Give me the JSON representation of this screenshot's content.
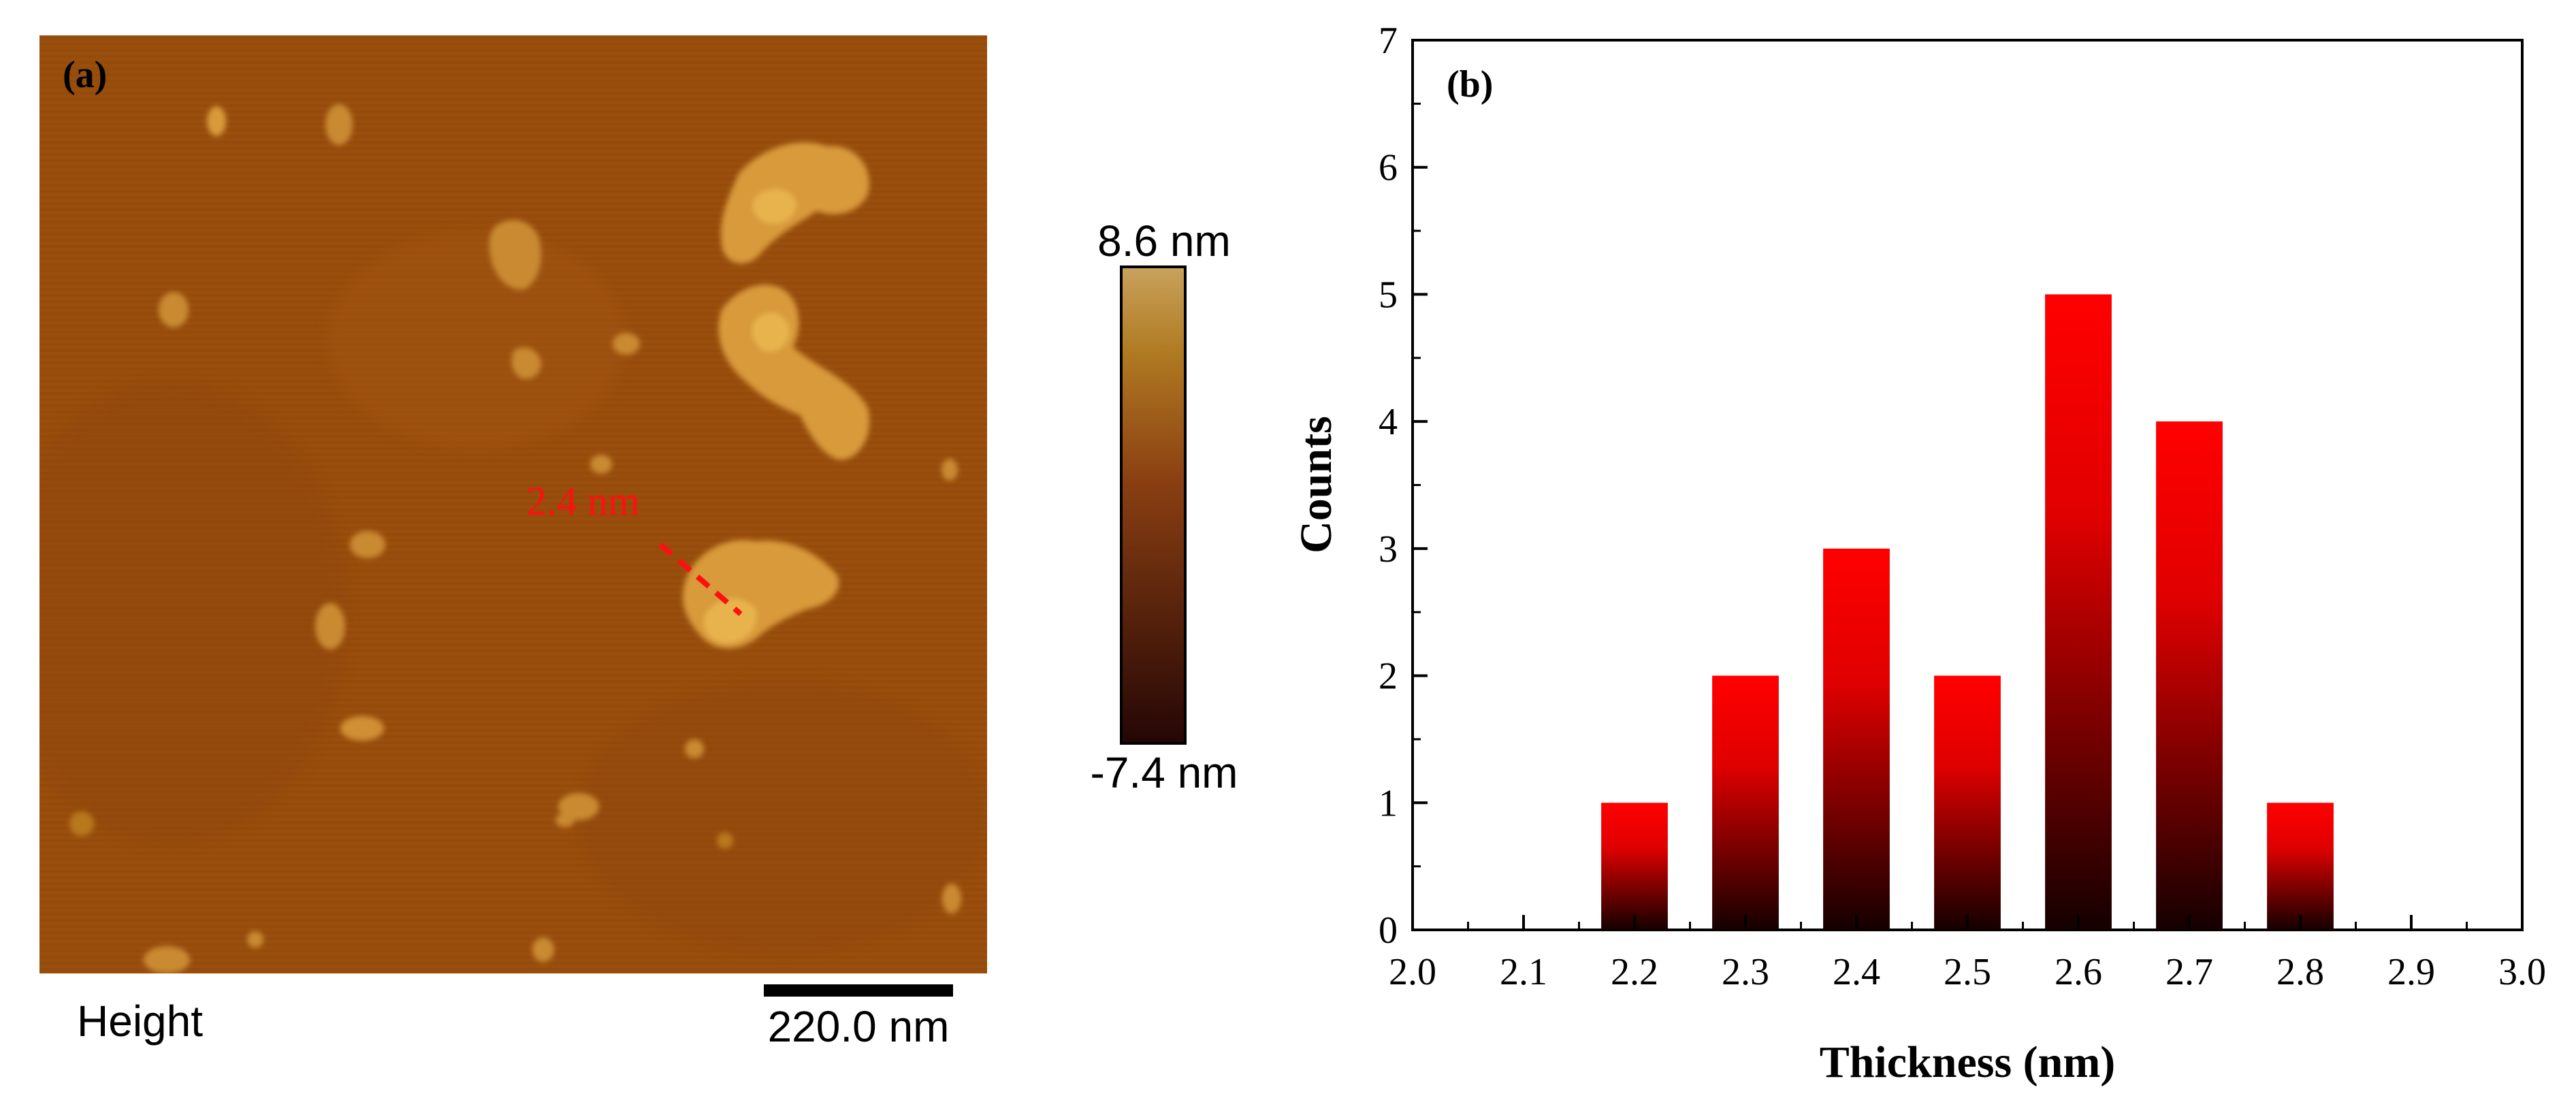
{
  "panel_a": {
    "label": "(a)",
    "annotation": "2.4 nm",
    "colorbar_max": "8.6 nm",
    "colorbar_min": "-7.4 nm",
    "channel_label": "Height",
    "scalebar_label": "220.0 nm",
    "colors": {
      "surface": "#9a4e0c",
      "surface_dark": "#8e4509",
      "feature": "#d89a3a",
      "feature_bright": "#e8b34d",
      "annotation": "#ff1010",
      "colorbar_top": "#c9a25c",
      "colorbar_mid": "#8a3f12",
      "colorbar_bottom": "#250606"
    }
  },
  "chart_data": {
    "type": "bar",
    "panel_label": "(b)",
    "title": "",
    "xlabel": "Thickness (nm)",
    "ylabel": "Counts",
    "categories": [
      "2.2",
      "2.3",
      "2.4",
      "2.5",
      "2.6",
      "2.7",
      "2.8"
    ],
    "x": [
      2.2,
      2.3,
      2.4,
      2.5,
      2.6,
      2.7,
      2.8
    ],
    "values": [
      1,
      2,
      3,
      2,
      5,
      4,
      1
    ],
    "xlim": [
      2.0,
      3.0
    ],
    "ylim": [
      0,
      7
    ],
    "xticks": [
      "2.0",
      "2.1",
      "2.2",
      "2.3",
      "2.4",
      "2.5",
      "2.6",
      "2.7",
      "2.8",
      "2.9",
      "3.0"
    ],
    "yticks": [
      "0",
      "1",
      "2",
      "3",
      "4",
      "5",
      "6",
      "7"
    ],
    "grid": false,
    "bar_color_top": "#ff0000",
    "bar_color_bottom": "#150000"
  }
}
